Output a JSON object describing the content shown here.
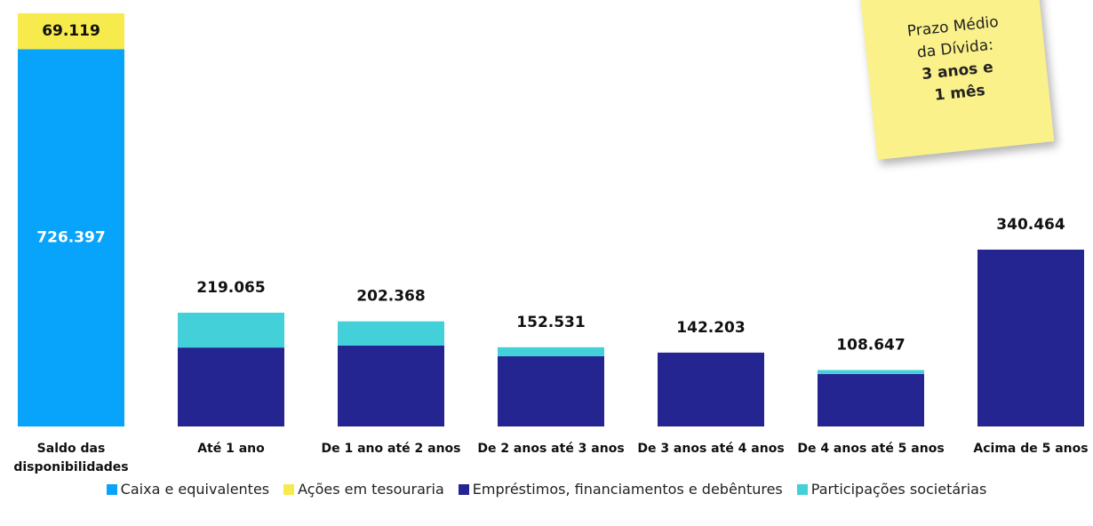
{
  "chart_data": {
    "type": "stacked_bar",
    "categories": [
      "Saldo das disponibilidades",
      "Até 1 ano",
      "De 1 ano até 2 anos",
      "De 2 anos até 3 anos",
      "De 3 anos até 4 anos",
      "De 4 anos até 5 anos",
      "Acima de 5 anos"
    ],
    "series": [
      {
        "name": "Caixa e equivalentes",
        "color": "#08a4fb",
        "values": [
          726397,
          null,
          null,
          null,
          null,
          null,
          null
        ],
        "value_labels": [
          "726.397",
          null,
          null,
          null,
          null,
          null,
          null
        ]
      },
      {
        "name": "Ações em tesouraria",
        "color": "#f6ea4c",
        "values": [
          69119,
          null,
          null,
          null,
          null,
          null,
          null
        ],
        "value_labels": [
          "69.119",
          null,
          null,
          null,
          null,
          null,
          null
        ]
      },
      {
        "name": "Empréstimos, financiamentos e debêntures",
        "color": "#242590",
        "values": [
          null,
          152000,
          155700,
          135200,
          142203,
          101000,
          340464
        ]
      },
      {
        "name": "Participações societárias",
        "color": "#43d0d8",
        "values": [
          null,
          67065,
          46668,
          17331,
          null,
          7647,
          null
        ]
      }
    ],
    "totals": [
      null,
      {
        "value": 219065,
        "label": "219.065"
      },
      {
        "value": 202368,
        "label": "202.368"
      },
      {
        "value": 152531,
        "label": "152.531"
      },
      {
        "value": 142203,
        "label": "142.203"
      },
      {
        "value": 108647,
        "label": "108.647"
      },
      {
        "value": 340464,
        "label": "340.464"
      }
    ],
    "ylim": [
      0,
      821000
    ],
    "annotation": [
      "Prazo Médio",
      "da Dívida:",
      "3 anos e",
      "1 mês"
    ]
  }
}
